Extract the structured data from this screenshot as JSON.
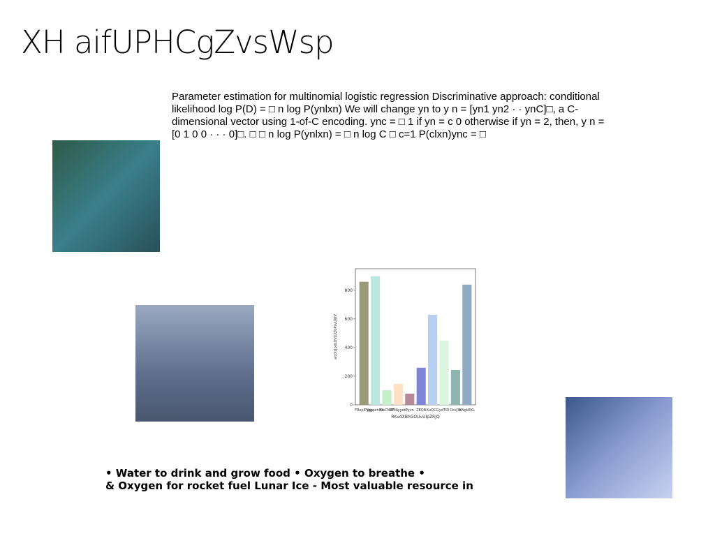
{
  "title": "XH aifUPHCgZvsWsp",
  "paragraph": "Parameter estimation for multinomial logistic regression Discriminative approach: conditional likelihood log P(D) = □ n log P(ynlxn) We will change yn to y n = [yn1 yn2 · · ynC]□, a C-dimensional vector using 1-of-C encoding. ync = □ 1 if yn = c 0 otherwise if yn = 2, then, y n = [0 1 0 0 · · · 0]□. □ □ n log P(ynlxn) = □ n log C □ c=1 P(clxn)ync = □",
  "bullets": [
    "• Water to drink and grow food • Oxygen to breathe •",
    "& Oxygen for rocket fuel Lunar Ice - Most valuable resource in"
  ],
  "chart_data": {
    "type": "bar",
    "categories": [
      "FRopIPVgs",
      "jpgpchHk",
      "ObCNRT",
      "DMAyyetf",
      "Pyvn",
      "ZEOB",
      "KuQCG",
      "ydTOl",
      "OcxJW",
      "bNgkEKL"
    ],
    "values": [
      859,
      898,
      102,
      146,
      78,
      259,
      629,
      449,
      244,
      839
    ],
    "colors": [
      "#9a9a78",
      "#bce8e2",
      "#c4f0ca",
      "#fde1c6",
      "#b68b97",
      "#7f86d8",
      "#b7cff0",
      "#daf6e0",
      "#90b4ae",
      "#8faac1"
    ],
    "xlabel": "RKvdXBhGOUvUlpZRJQ",
    "ylabel": "amXzJpdLOVLUZbPsvUWV",
    "ylim": [
      0,
      950
    ],
    "yticks": [
      0,
      200,
      400,
      600,
      800
    ]
  }
}
